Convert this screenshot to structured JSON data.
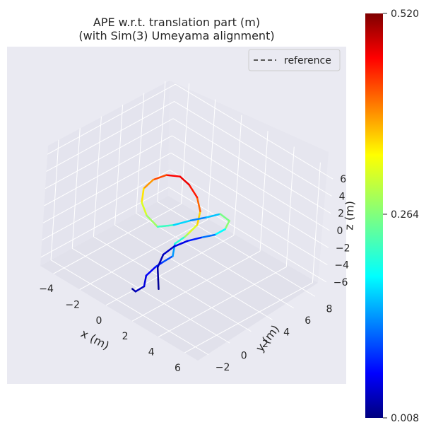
{
  "chart_data": {
    "type": "line",
    "projection": "3d",
    "title_line1": "APE w.r.t. translation part (m)",
    "title_line2": "(with Sim(3) Umeyama alignment)",
    "xlabel": "x (m)",
    "ylabel": "y (m)",
    "zlabel": "z (m)",
    "xticks": [
      "−4",
      "−2",
      "0",
      "2",
      "4",
      "6"
    ],
    "yticks": [
      "−2",
      "0",
      "2",
      "4",
      "6",
      "8"
    ],
    "zticks": [
      "−6",
      "−4",
      "−2",
      "0",
      "2",
      "4",
      "6"
    ],
    "xlim": [
      -5,
      7
    ],
    "ylim": [
      -3,
      9
    ],
    "zlim": [
      -7,
      7
    ],
    "legend": {
      "placement": "top-right",
      "entries": [
        {
          "label": "reference",
          "style": "dashed",
          "color": "#5a5a5a"
        }
      ]
    },
    "colorbar": {
      "colormap": "jet",
      "min_label": "0.008",
      "mid_label": "0.264",
      "max_label": "0.520",
      "min": 0.008,
      "mid": 0.264,
      "max": 0.52
    },
    "series": [
      {
        "kind": "reference",
        "points": [
          [
            0.2,
            -0.8,
            -6.4
          ],
          [
            0.6,
            -1.0,
            -6.2
          ],
          [
            0.9,
            -0.6,
            -5.6
          ],
          [
            0.7,
            -0.2,
            -4.8
          ],
          [
            1.0,
            0.3,
            -3.8
          ],
          [
            1.4,
            0.4,
            -3.0
          ],
          [
            1.8,
            0.8,
            -2.2
          ],
          [
            1.6,
            1.2,
            -1.2
          ],
          [
            2.0,
            1.6,
            -0.3
          ],
          [
            2.4,
            1.4,
            0.6
          ],
          [
            2.7,
            1.8,
            1.6
          ],
          [
            2.4,
            2.4,
            2.5
          ],
          [
            1.8,
            2.8,
            3.3
          ],
          [
            1.0,
            3.0,
            3.9
          ],
          [
            0.3,
            3.0,
            4.2
          ],
          [
            -0.4,
            2.6,
            4.0
          ],
          [
            -0.9,
            2.0,
            3.4
          ],
          [
            -1.1,
            1.4,
            2.6
          ],
          [
            -0.8,
            0.9,
            1.6
          ],
          [
            -0.3,
            0.8,
            0.6
          ],
          [
            0.4,
            1.0,
            -0.2
          ],
          [
            1.2,
            1.5,
            0.4
          ],
          [
            1.9,
            2.2,
            1.1
          ],
          [
            2.6,
            2.8,
            1.7
          ],
          [
            3.2,
            3.3,
            2.3
          ],
          [
            3.6,
            3.7,
            1.6
          ],
          [
            3.4,
            3.6,
            0.5
          ],
          [
            2.9,
            3.3,
            -0.4
          ],
          [
            2.2,
            2.9,
            -1.1
          ],
          [
            1.6,
            2.4,
            -1.7
          ],
          [
            1.1,
            1.8,
            -2.4
          ],
          [
            0.8,
            1.2,
            -3.2
          ],
          [
            0.9,
            0.6,
            -4.2
          ],
          [
            1.3,
            0.2,
            -5.0
          ],
          [
            1.6,
            -0.1,
            -5.6
          ]
        ]
      },
      {
        "kind": "estimate",
        "points": [
          [
            0.2,
            -0.8,
            -6.4
          ],
          [
            0.6,
            -1.0,
            -6.2
          ],
          [
            0.9,
            -0.6,
            -5.6
          ],
          [
            0.7,
            -0.2,
            -4.8
          ],
          [
            1.0,
            0.3,
            -3.8
          ],
          [
            1.4,
            0.4,
            -3.0
          ],
          [
            1.8,
            0.8,
            -2.2
          ],
          [
            1.6,
            1.2,
            -1.2
          ],
          [
            2.0,
            1.6,
            -0.3
          ],
          [
            2.4,
            1.4,
            0.6
          ],
          [
            2.7,
            1.8,
            1.6
          ],
          [
            2.4,
            2.4,
            2.5
          ],
          [
            1.8,
            2.8,
            3.3
          ],
          [
            1.0,
            3.0,
            3.9
          ],
          [
            0.3,
            3.0,
            4.2
          ],
          [
            -0.4,
            2.6,
            4.0
          ],
          [
            -0.9,
            2.0,
            3.4
          ],
          [
            -1.1,
            1.4,
            2.6
          ],
          [
            -0.8,
            0.9,
            1.6
          ],
          [
            -0.3,
            0.8,
            0.6
          ],
          [
            0.4,
            1.0,
            -0.2
          ],
          [
            1.2,
            1.5,
            0.4
          ],
          [
            1.9,
            2.2,
            1.1
          ],
          [
            2.6,
            2.8,
            1.7
          ],
          [
            3.2,
            3.3,
            2.3
          ],
          [
            3.6,
            3.7,
            1.6
          ],
          [
            3.4,
            3.6,
            0.5
          ],
          [
            2.9,
            3.3,
            -0.4
          ],
          [
            2.2,
            2.9,
            -1.1
          ],
          [
            1.6,
            2.4,
            -1.7
          ],
          [
            1.1,
            1.8,
            -2.4
          ],
          [
            0.8,
            1.2,
            -3.2
          ],
          [
            0.9,
            0.6,
            -4.2
          ],
          [
            1.3,
            0.2,
            -5.0
          ],
          [
            1.6,
            -0.1,
            -5.6
          ]
        ],
        "ape": [
          0.02,
          0.03,
          0.05,
          0.06,
          0.08,
          0.1,
          0.12,
          0.18,
          0.26,
          0.3,
          0.32,
          0.38,
          0.43,
          0.46,
          0.47,
          0.44,
          0.4,
          0.36,
          0.32,
          0.3,
          0.26,
          0.2,
          0.16,
          0.12,
          0.22,
          0.3,
          0.24,
          0.16,
          0.1,
          0.07,
          0.05,
          0.04,
          0.03,
          0.02,
          0.02
        ]
      }
    ]
  }
}
